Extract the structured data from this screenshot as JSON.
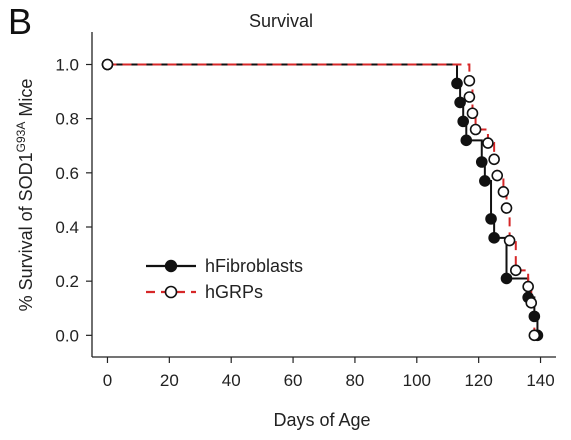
{
  "panel_label": "B",
  "chart_data": {
    "type": "line",
    "title": "Survival",
    "xlabel": "Days of Age",
    "ylabel_prefix": "% Survival of SOD1",
    "ylabel_sup": "G93A",
    "ylabel_suffix": " Mice",
    "xlim": [
      -5,
      145
    ],
    "ylim": [
      -0.08,
      1.12
    ],
    "x_ticks": [
      0,
      20,
      40,
      60,
      80,
      100,
      120,
      140
    ],
    "x_tick_labels": [
      "0",
      "20",
      "40",
      "60",
      "80",
      "100",
      "120",
      "140"
    ],
    "y_ticks": [
      0.0,
      0.2,
      0.4,
      0.6,
      0.8,
      1.0
    ],
    "y_tick_labels": [
      "0.0",
      "0.2",
      "0.4",
      "0.6",
      "0.8",
      "1.0"
    ],
    "grid": false,
    "legend_position": "left",
    "series": [
      {
        "name": "hFibroblasts",
        "color": "#111111",
        "dash": "solid",
        "marker": "filled-circle",
        "steps": [
          [
            0,
            1.0
          ],
          [
            113,
            0.93
          ],
          [
            114,
            0.86
          ],
          [
            115,
            0.79
          ],
          [
            116,
            0.72
          ],
          [
            121,
            0.64
          ],
          [
            122,
            0.57
          ],
          [
            124,
            0.43
          ],
          [
            125,
            0.36
          ],
          [
            129,
            0.21
          ],
          [
            136,
            0.14
          ],
          [
            138,
            0.07
          ],
          [
            139,
            0.0
          ]
        ],
        "markers": [
          [
            0,
            1.0
          ],
          [
            113,
            0.93
          ],
          [
            114,
            0.86
          ],
          [
            115,
            0.79
          ],
          [
            116,
            0.72
          ],
          [
            121,
            0.64
          ],
          [
            122,
            0.57
          ],
          [
            124,
            0.43
          ],
          [
            125,
            0.36
          ],
          [
            129,
            0.21
          ],
          [
            136,
            0.14
          ],
          [
            138,
            0.07
          ],
          [
            139,
            0.0
          ]
        ]
      },
      {
        "name": "hGRPs",
        "color": "#d62728",
        "dash": "dashed",
        "marker": "open-circle",
        "steps": [
          [
            0,
            1.0
          ],
          [
            117,
            0.94
          ],
          [
            118,
            0.82
          ],
          [
            119,
            0.76
          ],
          [
            123,
            0.71
          ],
          [
            125,
            0.65
          ],
          [
            126,
            0.59
          ],
          [
            128,
            0.53
          ],
          [
            129,
            0.47
          ],
          [
            130,
            0.35
          ],
          [
            132,
            0.24
          ],
          [
            136,
            0.18
          ],
          [
            137,
            0.12
          ],
          [
            138,
            0.0
          ]
        ],
        "markers": [
          [
            0,
            1.0
          ],
          [
            117,
            0.94
          ],
          [
            117,
            0.88
          ],
          [
            118,
            0.82
          ],
          [
            119,
            0.76
          ],
          [
            123,
            0.71
          ],
          [
            125,
            0.65
          ],
          [
            126,
            0.59
          ],
          [
            128,
            0.53
          ],
          [
            129,
            0.47
          ],
          [
            130,
            0.35
          ],
          [
            132,
            0.24
          ],
          [
            136,
            0.18
          ],
          [
            137,
            0.12
          ],
          [
            138,
            0.0
          ]
        ]
      }
    ]
  }
}
